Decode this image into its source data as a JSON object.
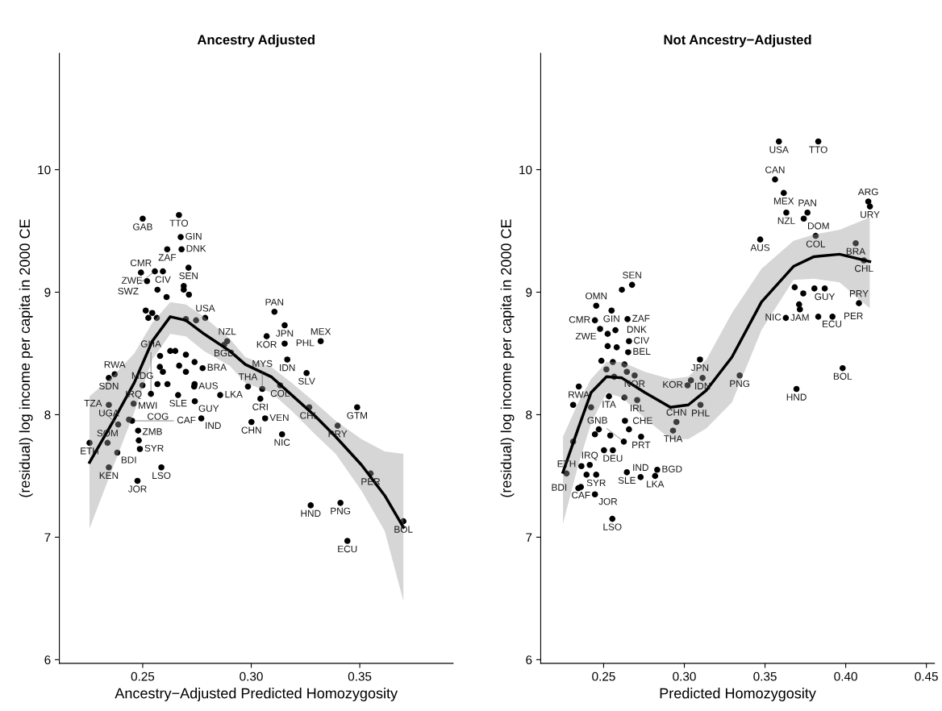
{
  "chart_data": [
    {
      "type": "scatter",
      "title": "Ancestry Adjusted",
      "xlabel": "Ancestry−Adjusted Predicted Homozygosity",
      "ylabel": "(residual) log income per capita in 2000 CE",
      "xlim": [
        0.2116,
        0.393
      ],
      "ylim": [
        5.97,
        10.95
      ],
      "xticks": [
        {
          "value": 0.25,
          "label": "0.25"
        },
        {
          "value": 0.3,
          "label": "0.30"
        },
        {
          "value": 0.35,
          "label": "0.35"
        }
      ],
      "yticks": [
        6,
        7,
        8,
        9,
        10
      ],
      "grid": false,
      "series": [
        {
          "marker": "circle",
          "color": "#000000",
          "x": [
            0.25,
            0.2667,
            0.2675,
            0.2613,
            0.2679,
            0.2711,
            0.2492,
            0.2556,
            0.2593,
            0.252,
            0.2689,
            0.2689,
            0.2568,
            0.2713,
            0.261,
            0.2514,
            0.2544,
            0.2788,
            0.2565,
            0.2526,
            0.2699,
            0.2746,
            0.2889,
            0.2875,
            0.2344,
            0.2371,
            0.2344,
            0.2255,
            0.2338,
            0.2383,
            0.2344,
            0.2387,
            0.2476,
            0.2586,
            0.2487,
            0.2482,
            0.2479,
            0.2437,
            0.2451,
            0.2458,
            0.2538,
            0.2499,
            0.2663,
            0.2737,
            0.274,
            0.277,
            0.2857,
            0.2776,
            0.3107,
            0.3154,
            0.3071,
            0.3154,
            0.332,
            0.3166,
            0.3255,
            0.3133,
            0.2985,
            0.3051,
            0.3042,
            0.3001,
            0.3064,
            0.3142,
            0.3267,
            0.3488,
            0.3398,
            0.355,
            0.3701,
            0.3274,
            0.3411,
            0.3443,
            0.258,
            0.2627,
            0.265,
            0.2699,
            0.2739,
            0.2668,
            0.2579,
            0.2593,
            0.2568,
            0.2699,
            0.2739,
            0.2614
          ],
          "values": [
            9.6,
            9.63,
            9.45,
            9.35,
            9.35,
            9.2,
            9.16,
            9.17,
            9.17,
            9.09,
            9.05,
            9.02,
            9.02,
            8.98,
            8.96,
            8.85,
            8.83,
            8.79,
            8.79,
            8.79,
            8.78,
            8.77,
            8.6,
            8.57,
            8.3,
            8.33,
            8.08,
            7.77,
            7.77,
            7.69,
            7.57,
            7.92,
            7.46,
            7.57,
            7.72,
            7.79,
            7.87,
            7.96,
            7.95,
            8.09,
            8.17,
            8.24,
            8.16,
            8.23,
            8.11,
            7.97,
            8.16,
            8.38,
            8.84,
            8.73,
            8.64,
            8.58,
            8.6,
            8.45,
            8.34,
            8.24,
            8.23,
            8.21,
            8.13,
            7.94,
            7.97,
            7.84,
            8.06,
            8.06,
            7.91,
            7.52,
            7.13,
            7.26,
            7.28,
            6.97,
            8.48,
            8.52,
            8.52,
            8.49,
            8.43,
            8.4,
            8.39,
            8.35,
            8.25,
            8.35,
            8.25,
            8.25
          ]
        },
        {
          "type": "line",
          "color": "#000000",
          "x": [
            0.2255,
            0.2365,
            0.2461,
            0.2544,
            0.2627,
            0.2699,
            0.2782,
            0.2901,
            0.2973,
            0.3092,
            0.3187,
            0.3294,
            0.3389,
            0.3508,
            0.3615,
            0.3701
          ],
          "values": [
            7.61,
            7.95,
            8.26,
            8.6,
            8.8,
            8.77,
            8.66,
            8.52,
            8.41,
            8.31,
            8.16,
            7.99,
            7.82,
            7.59,
            7.34,
            7.08
          ],
          "upper": [
            8.15,
            8.32,
            8.5,
            8.75,
            8.92,
            8.9,
            8.8,
            8.62,
            8.47,
            8.39,
            8.26,
            8.1,
            7.95,
            7.8,
            7.7,
            7.68
          ],
          "lower": [
            7.07,
            7.58,
            8.02,
            8.45,
            8.66,
            8.64,
            8.52,
            8.4,
            8.26,
            8.18,
            8.03,
            7.84,
            7.68,
            7.38,
            7.05,
            6.48
          ]
        }
      ],
      "annotations": [
        {
          "text": "GAB",
          "x": 0.25,
          "y": 9.6
        },
        {
          "text": "TTO",
          "x": 0.2667,
          "y": 9.63
        },
        {
          "text": "GIN",
          "x": 0.2675,
          "y": 9.45
        },
        {
          "text": "ZAF",
          "x": 0.2613,
          "y": 9.35
        },
        {
          "text": "DNK",
          "x": 0.2679,
          "y": 9.35
        },
        {
          "text": "SEN",
          "x": 0.2711,
          "y": 9.2
        },
        {
          "text": "CMR",
          "x": 0.2492,
          "y": 9.16
        },
        {
          "text": "SWZ",
          "x": 0.2556,
          "y": 9.17
        },
        {
          "text": "CIV",
          "x": 0.2593,
          "y": 9.17
        },
        {
          "text": "ZWE",
          "x": 0.252,
          "y": 9.09
        },
        {
          "text": "USA",
          "x": 0.2788,
          "y": 8.79
        },
        {
          "text": "NZL",
          "x": 0.2889,
          "y": 8.6
        },
        {
          "text": "BGD",
          "x": 0.2875,
          "y": 8.57
        },
        {
          "text": "SDN",
          "x": 0.2344,
          "y": 8.3
        },
        {
          "text": "RWA",
          "x": 0.2371,
          "y": 8.33
        },
        {
          "text": "UGA",
          "x": 0.2344,
          "y": 8.08
        },
        {
          "text": "ETH",
          "x": 0.2255,
          "y": 7.77
        },
        {
          "text": "SOM",
          "x": 0.2338,
          "y": 7.77
        },
        {
          "text": "BDI",
          "x": 0.2383,
          "y": 7.69
        },
        {
          "text": "KEN",
          "x": 0.2344,
          "y": 7.57
        },
        {
          "text": "TZA",
          "x": 0.2387,
          "y": 7.92
        },
        {
          "text": "JOR",
          "x": 0.2476,
          "y": 7.46
        },
        {
          "text": "LSO",
          "x": 0.2586,
          "y": 7.57
        },
        {
          "text": "SYR",
          "x": 0.2487,
          "y": 7.72
        },
        {
          "text": "ZMB",
          "x": 0.2482,
          "y": 7.79
        },
        {
          "text": "COG",
          "x": 0.2479,
          "y": 7.87
        },
        {
          "text": "MWI",
          "x": 0.2437,
          "y": 7.96
        },
        {
          "text": "CAF",
          "x": 0.2451,
          "y": 7.95
        },
        {
          "text": "IRQ",
          "x": 0.2458,
          "y": 8.09
        },
        {
          "text": "GHA",
          "x": 0.2538,
          "y": 8.17
        },
        {
          "text": "MDG",
          "x": 0.2499,
          "y": 8.24
        },
        {
          "text": "SLE",
          "x": 0.2663,
          "y": 8.16
        },
        {
          "text": "AUS",
          "x": 0.2737,
          "y": 8.23
        },
        {
          "text": "GUY",
          "x": 0.274,
          "y": 8.11
        },
        {
          "text": "IND",
          "x": 0.277,
          "y": 7.97
        },
        {
          "text": "LKA",
          "x": 0.2857,
          "y": 8.16
        },
        {
          "text": "BRA",
          "x": 0.2776,
          "y": 8.38
        },
        {
          "text": "PAN",
          "x": 0.3107,
          "y": 8.84
        },
        {
          "text": "JPN",
          "x": 0.3154,
          "y": 8.73
        },
        {
          "text": "KOR",
          "x": 0.3071,
          "y": 8.64
        },
        {
          "text": "PHL",
          "x": 0.3154,
          "y": 8.58
        },
        {
          "text": "MEX",
          "x": 0.332,
          "y": 8.6
        },
        {
          "text": "IDN",
          "x": 0.3166,
          "y": 8.45
        },
        {
          "text": "SLV",
          "x": 0.3255,
          "y": 8.34
        },
        {
          "text": "COL",
          "x": 0.3133,
          "y": 8.24
        },
        {
          "text": "THA",
          "x": 0.2985,
          "y": 8.23
        },
        {
          "text": "MYS",
          "x": 0.3051,
          "y": 8.21
        },
        {
          "text": "CRI",
          "x": 0.3042,
          "y": 8.13
        },
        {
          "text": "CHN",
          "x": 0.3001,
          "y": 7.94
        },
        {
          "text": "VEN",
          "x": 0.3064,
          "y": 7.97
        },
        {
          "text": "NIC",
          "x": 0.3142,
          "y": 7.84
        },
        {
          "text": "CHL",
          "x": 0.3267,
          "y": 8.06
        },
        {
          "text": "GTM",
          "x": 0.3488,
          "y": 8.06
        },
        {
          "text": "PRY",
          "x": 0.3398,
          "y": 7.91
        },
        {
          "text": "PER",
          "x": 0.355,
          "y": 7.52
        },
        {
          "text": "BOL",
          "x": 0.3701,
          "y": 7.13
        },
        {
          "text": "HND",
          "x": 0.3274,
          "y": 7.26
        },
        {
          "text": "PNG",
          "x": 0.3411,
          "y": 7.28
        },
        {
          "text": "ECU",
          "x": 0.3443,
          "y": 6.97
        }
      ]
    },
    {
      "type": "scatter",
      "title": "Not Ancestry−Adjusted",
      "xlabel": "Predicted Homozygosity",
      "ylabel": "(residual) log income per capita in 2000 CE",
      "xlim": [
        0.211,
        0.455
      ],
      "ylim": [
        5.97,
        10.95
      ],
      "xticks": [
        {
          "value": 0.25,
          "label": "0.25"
        },
        {
          "value": 0.3,
          "label": "0.30"
        },
        {
          "value": 0.35,
          "label": "0.35"
        },
        {
          "value": 0.4,
          "label": "0.40"
        },
        {
          "value": 0.45,
          "label": "0.45"
        }
      ],
      "yticks": [
        6,
        7,
        8,
        9,
        10
      ],
      "grid": false,
      "series": [
        {
          "marker": "circle",
          "color": "#000000",
          "x": [
            0.3586,
            0.383,
            0.3562,
            0.3616,
            0.3632,
            0.3763,
            0.374,
            0.3814,
            0.347,
            0.414,
            0.415,
            0.4062,
            0.4113,
            0.3684,
            0.3737,
            0.3806,
            0.387,
            0.3711,
            0.3716,
            0.3629,
            0.383,
            0.3918,
            0.4082,
            0.3981,
            0.3695,
            0.3343,
            0.3097,
            0.3113,
            0.3041,
            0.302,
            0.31,
            0.2951,
            0.293,
            0.2613,
            0.2676,
            0.2454,
            0.2549,
            0.2446,
            0.2648,
            0.2573,
            0.2478,
            0.2525,
            0.2657,
            0.2525,
            0.2581,
            0.2652,
            0.2486,
            0.2557,
            0.2629,
            0.2517,
            0.2644,
            0.2565,
            0.2692,
            0.2346,
            0.2533,
            0.2629,
            0.2708,
            0.2311,
            0.2422,
            0.2632,
            0.247,
            0.2446,
            0.2541,
            0.2657,
            0.2732,
            0.2625,
            0.2502,
            0.2557,
            0.2362,
            0.2414,
            0.2394,
            0.2454,
            0.2359,
            0.2446,
            0.2644,
            0.2729,
            0.2832,
            0.2819,
            0.2554,
            0.2311,
            0.2343,
            0.227
          ],
          "values": [
            10.23,
            10.23,
            9.92,
            9.81,
            9.65,
            9.65,
            9.6,
            9.46,
            9.43,
            9.74,
            9.7,
            9.4,
            9.26,
            9.04,
            8.99,
            9.03,
            9.03,
            8.9,
            8.86,
            8.79,
            8.8,
            8.8,
            8.91,
            8.38,
            8.21,
            8.32,
            8.45,
            8.3,
            8.28,
            8.24,
            8.08,
            7.94,
            7.87,
            9.02,
            9.06,
            8.89,
            8.85,
            8.77,
            8.78,
            8.69,
            8.7,
            8.66,
            8.6,
            8.56,
            8.55,
            8.51,
            8.44,
            8.43,
            8.41,
            8.37,
            8.35,
            8.31,
            8.32,
            8.23,
            8.15,
            8.14,
            8.12,
            8.08,
            8.06,
            7.95,
            7.88,
            7.84,
            7.83,
            7.88,
            7.82,
            7.78,
            7.71,
            7.71,
            7.58,
            7.59,
            7.51,
            7.51,
            7.41,
            7.35,
            7.53,
            7.49,
            7.55,
            7.5,
            7.15,
            7.78,
            7.4,
            7.52
          ]
        },
        {
          "type": "line",
          "color": "#000000",
          "x": [
            0.2248,
            0.2343,
            0.2422,
            0.2518,
            0.2613,
            0.2756,
            0.2914,
            0.3025,
            0.3137,
            0.3295,
            0.3478,
            0.3676,
            0.3803,
            0.3962,
            0.4149
          ],
          "values": [
            7.53,
            7.89,
            8.18,
            8.31,
            8.3,
            8.18,
            8.06,
            8.08,
            8.2,
            8.47,
            8.92,
            9.21,
            9.29,
            9.31,
            9.25
          ],
          "upper": [
            7.82,
            8.1,
            8.29,
            8.43,
            8.43,
            8.35,
            8.29,
            8.31,
            8.45,
            8.83,
            9.19,
            9.42,
            9.47,
            9.51,
            9.61
          ],
          "lower": [
            7.11,
            7.59,
            7.93,
            8.18,
            8.14,
            7.97,
            7.8,
            7.8,
            7.89,
            8.1,
            8.69,
            9.1,
            9.11,
            9.08,
            8.87
          ]
        }
      ],
      "annotations": [
        {
          "text": "USA",
          "x": 0.3586,
          "y": 10.23
        },
        {
          "text": "TTO",
          "x": 0.383,
          "y": 10.23
        },
        {
          "text": "CAN",
          "x": 0.3562,
          "y": 9.92
        },
        {
          "text": "MEX",
          "x": 0.3616,
          "y": 9.81
        },
        {
          "text": "NZL",
          "x": 0.3632,
          "y": 9.65
        },
        {
          "text": "PAN",
          "x": 0.3763,
          "y": 9.65
        },
        {
          "text": "DOM",
          "x": 0.374,
          "y": 9.6
        },
        {
          "text": "COL",
          "x": 0.3814,
          "y": 9.46
        },
        {
          "text": "AUS",
          "x": 0.347,
          "y": 9.43
        },
        {
          "text": "ARG",
          "x": 0.414,
          "y": 9.74
        },
        {
          "text": "URY",
          "x": 0.415,
          "y": 9.7
        },
        {
          "text": "BRA",
          "x": 0.4062,
          "y": 9.4
        },
        {
          "text": "CHL",
          "x": 0.4113,
          "y": 9.26
        },
        {
          "text": "GUY",
          "x": 0.387,
          "y": 9.03
        },
        {
          "text": "JAM",
          "x": 0.3716,
          "y": 8.86
        },
        {
          "text": "NIC",
          "x": 0.3629,
          "y": 8.79
        },
        {
          "text": "ECU",
          "x": 0.383,
          "y": 8.8
        },
        {
          "text": "PER",
          "x": 0.3918,
          "y": 8.8
        },
        {
          "text": "PRY",
          "x": 0.4082,
          "y": 8.91
        },
        {
          "text": "BOL",
          "x": 0.3981,
          "y": 8.38
        },
        {
          "text": "HND",
          "x": 0.3695,
          "y": 8.21
        },
        {
          "text": "PNG",
          "x": 0.3343,
          "y": 8.32
        },
        {
          "text": "JPN",
          "x": 0.3097,
          "y": 8.45
        },
        {
          "text": "IDN",
          "x": 0.3113,
          "y": 8.3
        },
        {
          "text": "KOR",
          "x": 0.302,
          "y": 8.24
        },
        {
          "text": "PHL",
          "x": 0.31,
          "y": 8.08
        },
        {
          "text": "CHN",
          "x": 0.2951,
          "y": 7.94
        },
        {
          "text": "THA",
          "x": 0.293,
          "y": 7.87
        },
        {
          "text": "SEN",
          "x": 0.2676,
          "y": 9.06
        },
        {
          "text": "OMN",
          "x": 0.2454,
          "y": 8.89
        },
        {
          "text": "GIN",
          "x": 0.2549,
          "y": 8.85
        },
        {
          "text": "CMR",
          "x": 0.2446,
          "y": 8.77
        },
        {
          "text": "ZAF",
          "x": 0.2648,
          "y": 8.78
        },
        {
          "text": "DNK",
          "x": 0.2573,
          "y": 8.69
        },
        {
          "text": "ZWE",
          "x": 0.2478,
          "y": 8.7
        },
        {
          "text": "CIV",
          "x": 0.2657,
          "y": 8.6
        },
        {
          "text": "BEL",
          "x": 0.2652,
          "y": 8.51
        },
        {
          "text": "NOR",
          "x": 0.2692,
          "y": 8.32
        },
        {
          "text": "RWA",
          "x": 0.2346,
          "y": 8.23
        },
        {
          "text": "ITA",
          "x": 0.2533,
          "y": 8.15
        },
        {
          "text": "IRL",
          "x": 0.2708,
          "y": 8.12
        },
        {
          "text": "CHE",
          "x": 0.2657,
          "y": 7.88
        },
        {
          "text": "PRT",
          "x": 0.2732,
          "y": 7.82
        },
        {
          "text": "GNB",
          "x": 0.2625,
          "y": 7.78
        },
        {
          "text": "DEU",
          "x": 0.2557,
          "y": 7.71
        },
        {
          "text": "IRQ",
          "x": 0.2414,
          "y": 7.59
        },
        {
          "text": "SYR",
          "x": 0.2454,
          "y": 7.51
        },
        {
          "text": "CAF",
          "x": 0.2359,
          "y": 7.41
        },
        {
          "text": "JOR",
          "x": 0.2446,
          "y": 7.35
        },
        {
          "text": "SLE",
          "x": 0.2644,
          "y": 7.53
        },
        {
          "text": "IND",
          "x": 0.2729,
          "y": 7.49
        },
        {
          "text": "BGD",
          "x": 0.2832,
          "y": 7.55
        },
        {
          "text": "LKA",
          "x": 0.2819,
          "y": 7.5
        },
        {
          "text": "LSO",
          "x": 0.2554,
          "y": 7.15
        },
        {
          "text": "BDI",
          "x": 0.2343,
          "y": 7.4
        },
        {
          "text": "ETH",
          "x": 0.227,
          "y": 7.52
        }
      ]
    }
  ]
}
